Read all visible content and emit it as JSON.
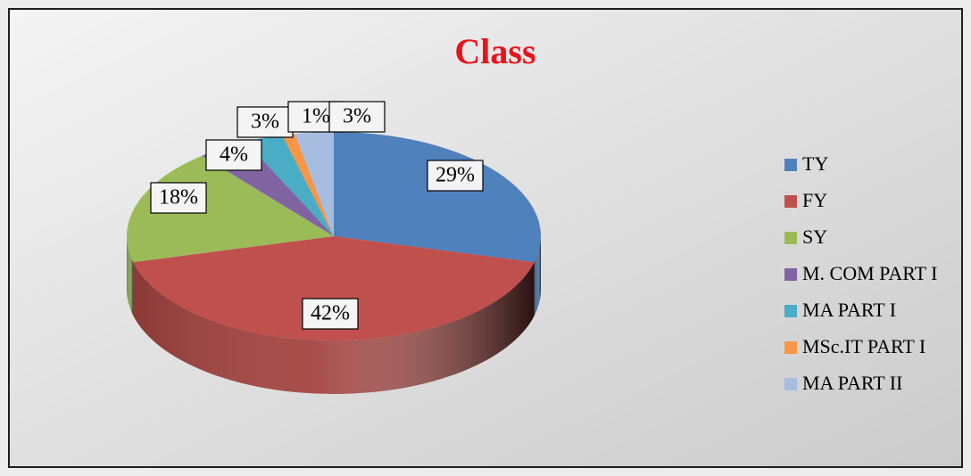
{
  "chart_data": {
    "type": "pie",
    "title": "Class",
    "categories": [
      "TY",
      "FY",
      "SY",
      "M. COM PART I",
      "MA PART I",
      "MSc.IT PART I",
      "MA PART II"
    ],
    "values": [
      29,
      42,
      18,
      4,
      3,
      1,
      3
    ],
    "value_labels": [
      "29%",
      "42%",
      "18%",
      "4%",
      "3%",
      "1%",
      "3%"
    ],
    "colors": [
      "#4f81bd",
      "#c0504d",
      "#9bbb59",
      "#8064a2",
      "#4bacc6",
      "#f79646",
      "#a7bde0"
    ],
    "legend": "right"
  }
}
